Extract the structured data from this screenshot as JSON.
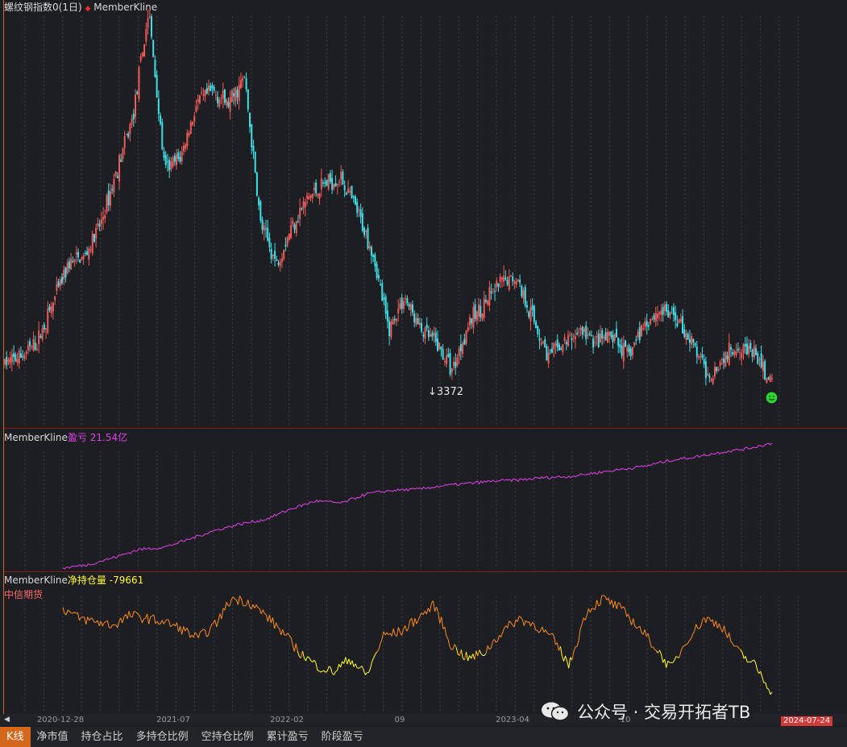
{
  "main_panel": {
    "instrument": "螺纹钢指数0(1日)",
    "indicator_marker": "◆",
    "indicator": "MemberKline",
    "low_label": "3372"
  },
  "pnl_panel": {
    "indicator": "MemberKline",
    "series_name": "盈亏",
    "value": "21.54亿",
    "color": "#e040e8"
  },
  "position_panel": {
    "indicator": "MemberKline",
    "series_name": "净持仓量",
    "value": "-79661",
    "member": "中信期货",
    "colors": {
      "up": "#ff8a1e",
      "down": "#ffff30"
    }
  },
  "time_axis": {
    "ticks": [
      "2020-12-28",
      "2021-07",
      "2022-02",
      "09",
      "2023-04",
      "10"
    ],
    "current_date": "2024-07-24"
  },
  "tabs": [
    "K线",
    "净市值",
    "持仓占比",
    "多持仓比例",
    "空持仓比例",
    "累计盈亏",
    "阶段盈亏"
  ],
  "active_tab": "K线",
  "watermark": "公众号 · 交易开拓者TB",
  "colors": {
    "background": "#1d1e22",
    "candle_up": "#f05a5a",
    "candle_down": "#40e0e8",
    "separator": "#8a1c1c",
    "active_tab": "#d4681a",
    "indicator_marker": "#ff2a2a"
  },
  "chart_data": [
    {
      "type": "candlestick",
      "title": "螺纹钢指数0(1日)",
      "x_ticks": [
        "2020-12-28",
        "2021-07",
        "2022-02",
        "09",
        "2023-04",
        "10"
      ],
      "annotation": "3372",
      "close_path": [
        [
          "2020-05",
          3550
        ],
        [
          "2020-07",
          3600
        ],
        [
          "2020-09",
          3700
        ],
        [
          "2020-11",
          4000
        ],
        [
          "2020-12-28",
          4300
        ],
        [
          "2021-01",
          4350
        ],
        [
          "2021-02",
          4600
        ],
        [
          "2021-03",
          5000
        ],
        [
          "2021-04",
          5400
        ],
        [
          "2021-05-12",
          6200
        ],
        [
          "2021-05-28",
          5000
        ],
        [
          "2021-06",
          5100
        ],
        [
          "2021-07",
          5500
        ],
        [
          "2021-08",
          5600
        ],
        [
          "2021-09",
          5500
        ],
        [
          "2021-10",
          5700
        ],
        [
          "2021-11",
          4600
        ],
        [
          "2021-12",
          4300
        ],
        [
          "2022-01",
          4600
        ],
        [
          "2022-02",
          4800
        ],
        [
          "2022-03",
          4900
        ],
        [
          "2022-04",
          4950
        ],
        [
          "2022-05",
          4700
        ],
        [
          "2022-06",
          4400
        ],
        [
          "2022-07",
          3800
        ],
        [
          "2022-08",
          4050
        ],
        [
          "2022-09",
          3800
        ],
        [
          "2022-10",
          3700
        ],
        [
          "2022-11",
          3500
        ],
        [
          "2022-12",
          3850
        ],
        [
          "2023-01",
          4000
        ],
        [
          "2023-02",
          4150
        ],
        [
          "2023-03",
          4200
        ],
        [
          "2023-04",
          3900
        ],
        [
          "2023-05",
          3600
        ],
        [
          "2023-06",
          3700
        ],
        [
          "2023-07",
          3800
        ],
        [
          "2023-08",
          3700
        ],
        [
          "2023-09",
          3750
        ],
        [
          "2023-10",
          3600
        ],
        [
          "2023-11",
          3850
        ],
        [
          "2023-12",
          3950
        ],
        [
          "2024-01",
          3900
        ],
        [
          "2024-02",
          3700
        ],
        [
          "2024-03",
          3450
        ],
        [
          "2024-04",
          3600
        ],
        [
          "2024-05",
          3700
        ],
        [
          "2024-06",
          3600
        ],
        [
          "2024-07-24",
          3372
        ]
      ],
      "y_range": [
        3300,
        6200
      ]
    },
    {
      "type": "line",
      "title": "MemberKline盈亏 21.54亿",
      "series": [
        {
          "name": "盈亏",
          "color": "#e040e8",
          "values": [
            0.0,
            0.6,
            1.8,
            3.2,
            3.6,
            5.0,
            6.5,
            7.6,
            8.4,
            10.2,
            11.6,
            11.2,
            12.8,
            13.4,
            13.6,
            14.2,
            14.6,
            15.0,
            15.2,
            15.6,
            15.8,
            16.4,
            17.0,
            17.6,
            18.6,
            19.2,
            20.0,
            20.6,
            21.54
          ]
        }
      ]
    },
    {
      "type": "line",
      "title": "MemberKline净持仓量 -79661",
      "series": [
        {
          "name": "净持仓量",
          "values": [
            45000,
            30000,
            25000,
            20000,
            35000,
            30000,
            25000,
            15000,
            0,
            20000,
            60000,
            55000,
            35000,
            10000,
            -20000,
            -40000,
            -50000,
            -30000,
            -55000,
            5000,
            10000,
            30000,
            50000,
            -10000,
            -30000,
            -20000,
            10000,
            30000,
            20000,
            0,
            -40000,
            40000,
            60000,
            45000,
            20000,
            -10000,
            -45000,
            0,
            30000,
            20000,
            -20000,
            -40000,
            -79661
          ]
        }
      ]
    }
  ]
}
